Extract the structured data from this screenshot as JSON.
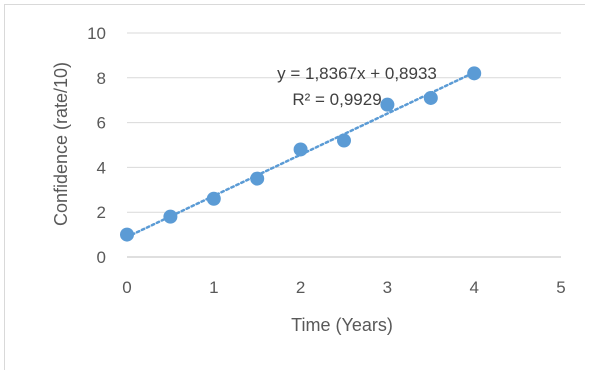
{
  "chart_data": {
    "type": "scatter",
    "xlabel": "Time (Years)",
    "ylabel": "Confidence (rate/10)",
    "xlim": [
      0,
      5
    ],
    "ylim": [
      0,
      10
    ],
    "x_ticks": [
      "0",
      "1",
      "2",
      "3",
      "4",
      "5"
    ],
    "y_ticks": [
      "0",
      "2",
      "4",
      "6",
      "8",
      "10"
    ],
    "grid": true,
    "series": [
      {
        "x": [
          0,
          0.5,
          1,
          1.5,
          2,
          2.5,
          3,
          3.5,
          4
        ],
        "y": [
          1.0,
          1.8,
          2.6,
          3.5,
          4.8,
          5.2,
          6.8,
          7.1,
          8.2
        ],
        "color": "#5b9bd5"
      }
    ],
    "trendline": {
      "type": "linear",
      "slope": 1.8367,
      "intercept": 0.8933,
      "x_range": [
        0,
        4
      ],
      "style": "dotted",
      "color": "#5b9bd5",
      "equation": "y = 1,8367x + 0,8933",
      "r_squared": "R² = 0,9929"
    }
  }
}
